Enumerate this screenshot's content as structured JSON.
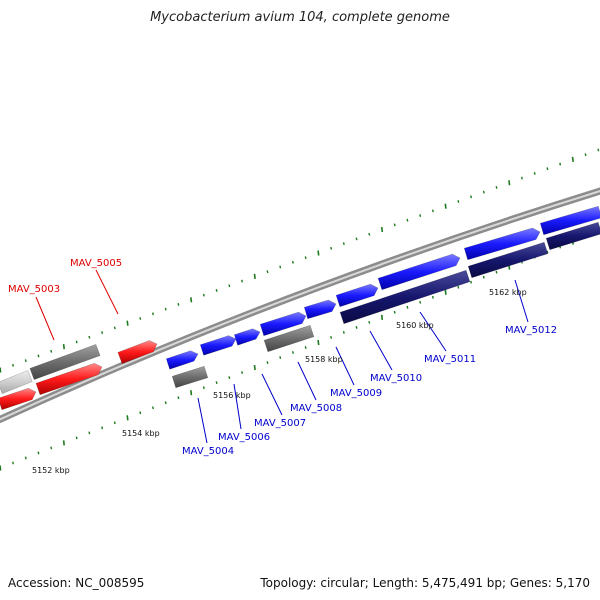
{
  "title": "Mycobacterium avium 104, complete genome",
  "footer": {
    "accession": "Accession: NC_008595",
    "stats": "Topology: circular; Length: 5,475,491 bp; Genes: 5,170"
  },
  "colors": {
    "red_gene": "#ff1a1a",
    "blue_gene": "#1a1aff",
    "navy_gene": "#16166e",
    "gray_gene": "#6e6e6e",
    "light_gene": "#cfcfcf",
    "backbone": "#8c8c8c",
    "tick": "#1e7a1e",
    "red_label": "#dd0000",
    "blue_label": "#0000cc"
  },
  "scale_labels": [
    "5152 kbp",
    "5154 kbp",
    "5156 kbp",
    "5158 kbp",
    "5160 kbp",
    "5162 kbp"
  ],
  "gene_labels": [
    {
      "text": "MAV_5003",
      "color": "red"
    },
    {
      "text": "MAV_5005",
      "color": "red"
    },
    {
      "text": "MAV_5004",
      "color": "blue"
    },
    {
      "text": "MAV_5006",
      "color": "blue"
    },
    {
      "text": "MAV_5007",
      "color": "blue"
    },
    {
      "text": "MAV_5008",
      "color": "blue"
    },
    {
      "text": "MAV_5009",
      "color": "blue"
    },
    {
      "text": "MAV_5010",
      "color": "blue"
    },
    {
      "text": "MAV_5011",
      "color": "blue"
    },
    {
      "text": "MAV_5012",
      "color": "blue"
    }
  ]
}
